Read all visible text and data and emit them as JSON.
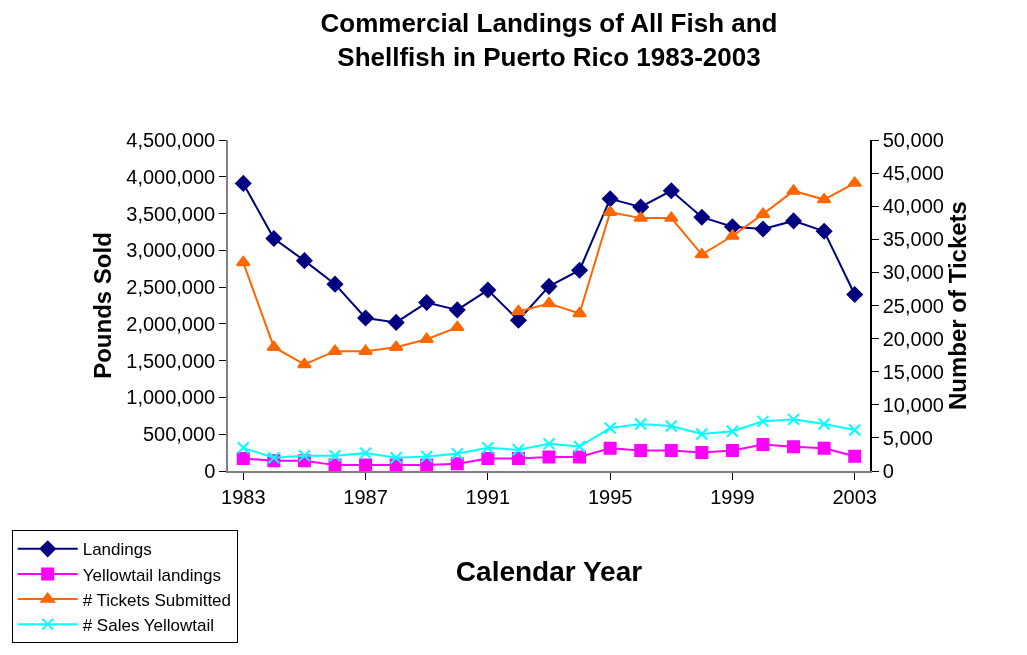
{
  "chart_data": {
    "type": "line",
    "title": "Commercial Landings of All Fish and Shellfish in Puerto Rico 1983-2003",
    "xlabel": "Calendar Year",
    "ylabel": "Pounds Sold",
    "y2label": "Number of Tickets",
    "x": [
      1983,
      1984,
      1985,
      1986,
      1987,
      1988,
      1989,
      1990,
      1991,
      1992,
      1993,
      1994,
      1995,
      1996,
      1997,
      1998,
      1999,
      2000,
      2001,
      2002,
      2003
    ],
    "series": [
      {
        "name": "Landings",
        "color": "#000080",
        "marker": "diamond",
        "values": [
          3910000,
          3160000,
          2860000,
          2540000,
          2080000,
          2020000,
          2290000,
          2190000,
          2460000,
          2050000,
          2510000,
          2730000,
          3700000,
          3590000,
          3810000,
          3450000,
          3320000,
          3290000,
          3400000,
          3260000,
          2400000
        ]
      },
      {
        "name": "Yellowtail landings",
        "color": "#ff00ff",
        "marker": "square",
        "values": [
          170000,
          140000,
          140000,
          80000,
          80000,
          80000,
          80000,
          100000,
          170000,
          170000,
          190000,
          190000,
          310000,
          280000,
          280000,
          250000,
          280000,
          360000,
          330000,
          310000,
          200000
        ]
      },
      {
        "name": "# Tickets Submitted",
        "color": "#ff6600",
        "marker": "triangle",
        "axis": "y2",
        "values": [
          31500,
          18700,
          16100,
          18100,
          18100,
          18700,
          19900,
          21700,
          null,
          24100,
          25300,
          23800,
          39100,
          38200,
          38200,
          32700,
          35500,
          38800,
          42300,
          41000,
          43500
        ]
      },
      {
        "name": "# Sales Yellowtail",
        "color": "#00ffff",
        "marker": "cross",
        "axis": "y2",
        "values": [
          3500,
          2000,
          2300,
          2300,
          2700,
          2000,
          2200,
          2600,
          3500,
          3200,
          4100,
          3700,
          6500,
          7100,
          6800,
          5600,
          6000,
          7500,
          7800,
          7100,
          6200
        ]
      }
    ],
    "xlim": [
      1982.5,
      2003.5
    ],
    "xticks": [
      1983,
      1987,
      1991,
      1995,
      1999,
      2003
    ],
    "ylim": [
      0,
      4500000
    ],
    "yticks": [
      {
        "value": 0,
        "label": "0"
      },
      {
        "value": 500000,
        "label": "500,000"
      },
      {
        "value": 1000000,
        "label": "1,000,000"
      },
      {
        "value": 1500000,
        "label": "1,500,000"
      },
      {
        "value": 2000000,
        "label": "2,000,000"
      },
      {
        "value": 2500000,
        "label": "2,500,000"
      },
      {
        "value": 3000000,
        "label": "3,000,000"
      },
      {
        "value": 3500000,
        "label": "3,500,000"
      },
      {
        "value": 4000000,
        "label": "4,000,000"
      },
      {
        "value": 4500000,
        "label": "4,500,000"
      }
    ],
    "y2lim": [
      0,
      50000
    ],
    "y2ticks": [
      {
        "value": 0,
        "label": "0"
      },
      {
        "value": 5000,
        "label": "5,000"
      },
      {
        "value": 10000,
        "label": "10,000"
      },
      {
        "value": 15000,
        "label": "15,000"
      },
      {
        "value": 20000,
        "label": "20,000"
      },
      {
        "value": 25000,
        "label": "25,000"
      },
      {
        "value": 30000,
        "label": "30,000"
      },
      {
        "value": 35000,
        "label": "35,000"
      },
      {
        "value": 40000,
        "label": "40,000"
      },
      {
        "value": 45000,
        "label": "45,000"
      },
      {
        "value": 50000,
        "label": "50,000"
      }
    ],
    "legend": "bottom left",
    "line_style": "solid"
  }
}
